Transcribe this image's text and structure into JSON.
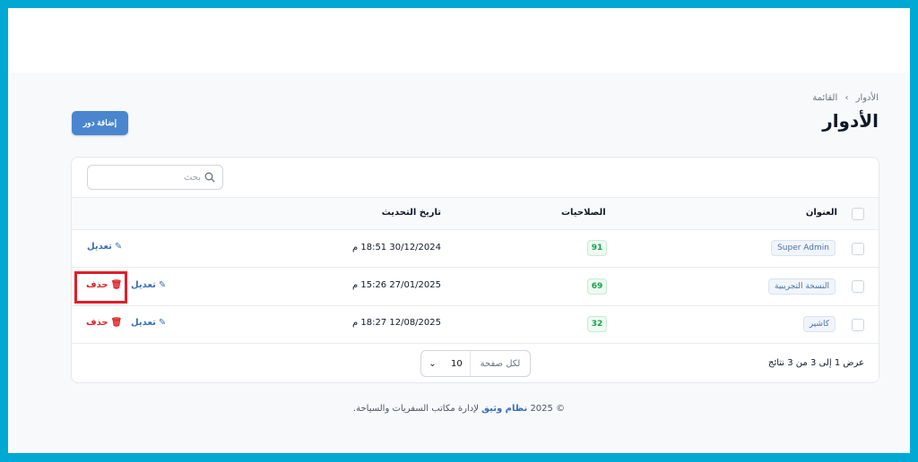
{
  "breadcrumb": {
    "parent": "الأدوار",
    "separator": "›",
    "current": "القائمة"
  },
  "page_title": "الأدوار",
  "add_button": "إضافة دور",
  "search": {
    "placeholder": "بحث"
  },
  "table": {
    "headers": {
      "title": "العنوان",
      "permissions": "الصلاحيات",
      "updated": "تاريخ التحديث"
    },
    "rows": [
      {
        "title": "Super Admin",
        "permissions": "91",
        "updated": "30/12/2024 18:51 م",
        "edit": "تعديل"
      },
      {
        "title": "النسخة التجريبية",
        "permissions": "69",
        "updated": "27/01/2025 15:26 م",
        "edit": "تعديل",
        "delete": "حذف"
      },
      {
        "title": "كاشير",
        "permissions": "32",
        "updated": "12/08/2025 18:27 م",
        "edit": "تعديل",
        "delete": "حذف"
      }
    ]
  },
  "pagination": {
    "summary": "عرض 1 إلى 3 من 3 نتائج",
    "per_page_label": "لكل صفحة",
    "per_page": "10"
  },
  "footer": {
    "prefix": "© 2025",
    "brand": "نظام وثيق",
    "suffix": "لإدارة مكاتب السفريات والسياحة."
  },
  "colors": {
    "accent": "#4a86d0",
    "danger": "#dc2626",
    "frame": "#00a9d3",
    "success": "#16a34a"
  }
}
